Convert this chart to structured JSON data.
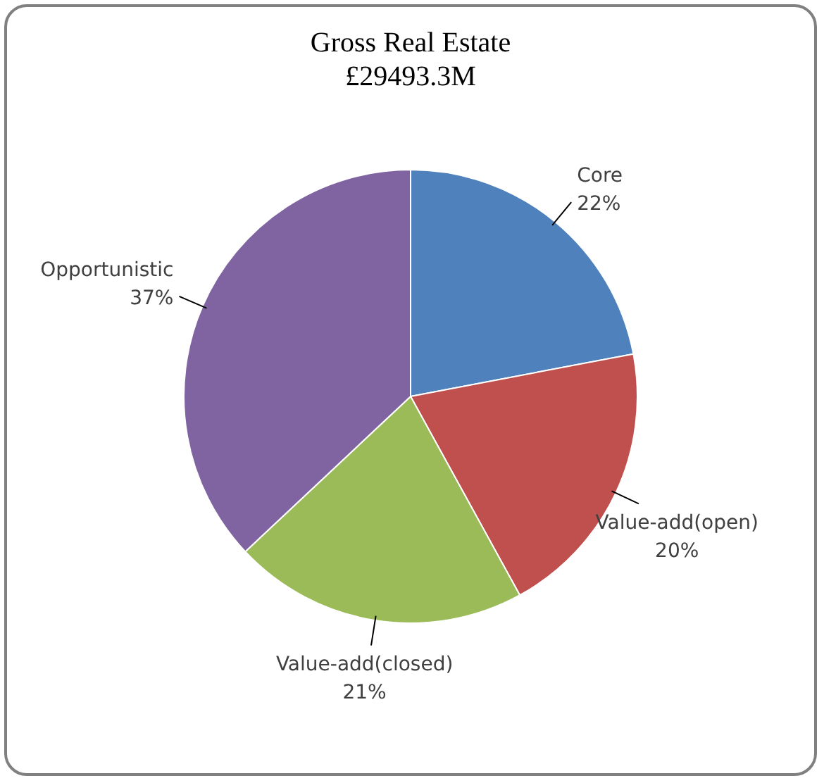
{
  "chart_data": {
    "type": "pie",
    "title": "Gross Real Estate",
    "subtitle": "£29493.3M",
    "categories": [
      "Core",
      "Value-add(open)",
      "Value-add(closed)",
      "Opportunistic"
    ],
    "values": [
      22,
      20,
      21,
      37
    ],
    "colors": [
      "#4f81bd",
      "#c0504d",
      "#9bbb59",
      "#8064a2"
    ],
    "value_labels": [
      "22%",
      "20%",
      "21%",
      "37%"
    ],
    "legend": false
  }
}
